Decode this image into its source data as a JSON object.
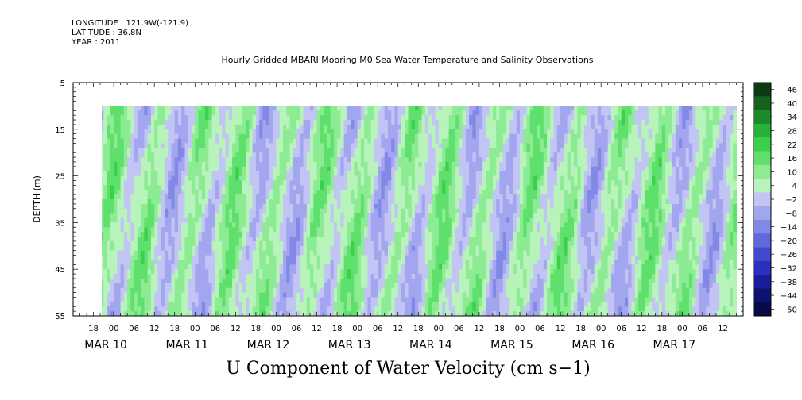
{
  "header": {
    "longitude": "LONGITUDE : 121.9W(-121.9)",
    "latitude": "LATITUDE : 36.8N",
    "year": "YEAR : 2011",
    "title": "Hourly Gridded MBARI Mooring M0 Sea Water Temperature and Salinity Observations"
  },
  "chart_data": {
    "type": "heatmap",
    "title": "U Component of Water Velocity (cm s−1)",
    "ylabel": "DEPTH (m)",
    "xlabel": "",
    "x_range_hours": [
      "MAR 9 12:00",
      "MAR 17 18:00"
    ],
    "x_data_start": "MAR 9 20:00",
    "x_data_end": "MAR 17 16:00",
    "y_range": [
      55,
      5
    ],
    "y_ticks": [
      "5",
      "15",
      "25",
      "35",
      "45",
      "55"
    ],
    "hour_tick_labels": [
      "18",
      "00",
      "06",
      "12",
      "18",
      "00",
      "06",
      "12",
      "18",
      "00",
      "06",
      "12",
      "18",
      "00",
      "06",
      "12",
      "18",
      "00",
      "06",
      "12",
      "18",
      "00",
      "06",
      "12",
      "18",
      "00",
      "06",
      "12",
      "18",
      "00",
      "06",
      "12"
    ],
    "day_labels": [
      "MAR 10",
      "MAR 11",
      "MAR 12",
      "MAR 13",
      "MAR 14",
      "MAR 15",
      "MAR 16",
      "MAR 17"
    ],
    "depth_data_top": 10,
    "colorbar": {
      "levels": [
        "46",
        "40",
        "34",
        "28",
        "22",
        "16",
        "10",
        "4",
        "−2",
        "−8",
        "−14",
        "−20",
        "−26",
        "−32",
        "−38",
        "−44",
        "−50"
      ],
      "colors": [
        "#0b3b12",
        "#14621e",
        "#1c8a2a",
        "#27b238",
        "#3bd04c",
        "#5fe06d",
        "#8ceb93",
        "#b8f3bb",
        "#c2c4f4",
        "#a2a6ee",
        "#8288e6",
        "#6168dc",
        "#4349cf",
        "#2a2fbd",
        "#1a1d9a",
        "#0f116f",
        "#080947"
      ]
    }
  }
}
